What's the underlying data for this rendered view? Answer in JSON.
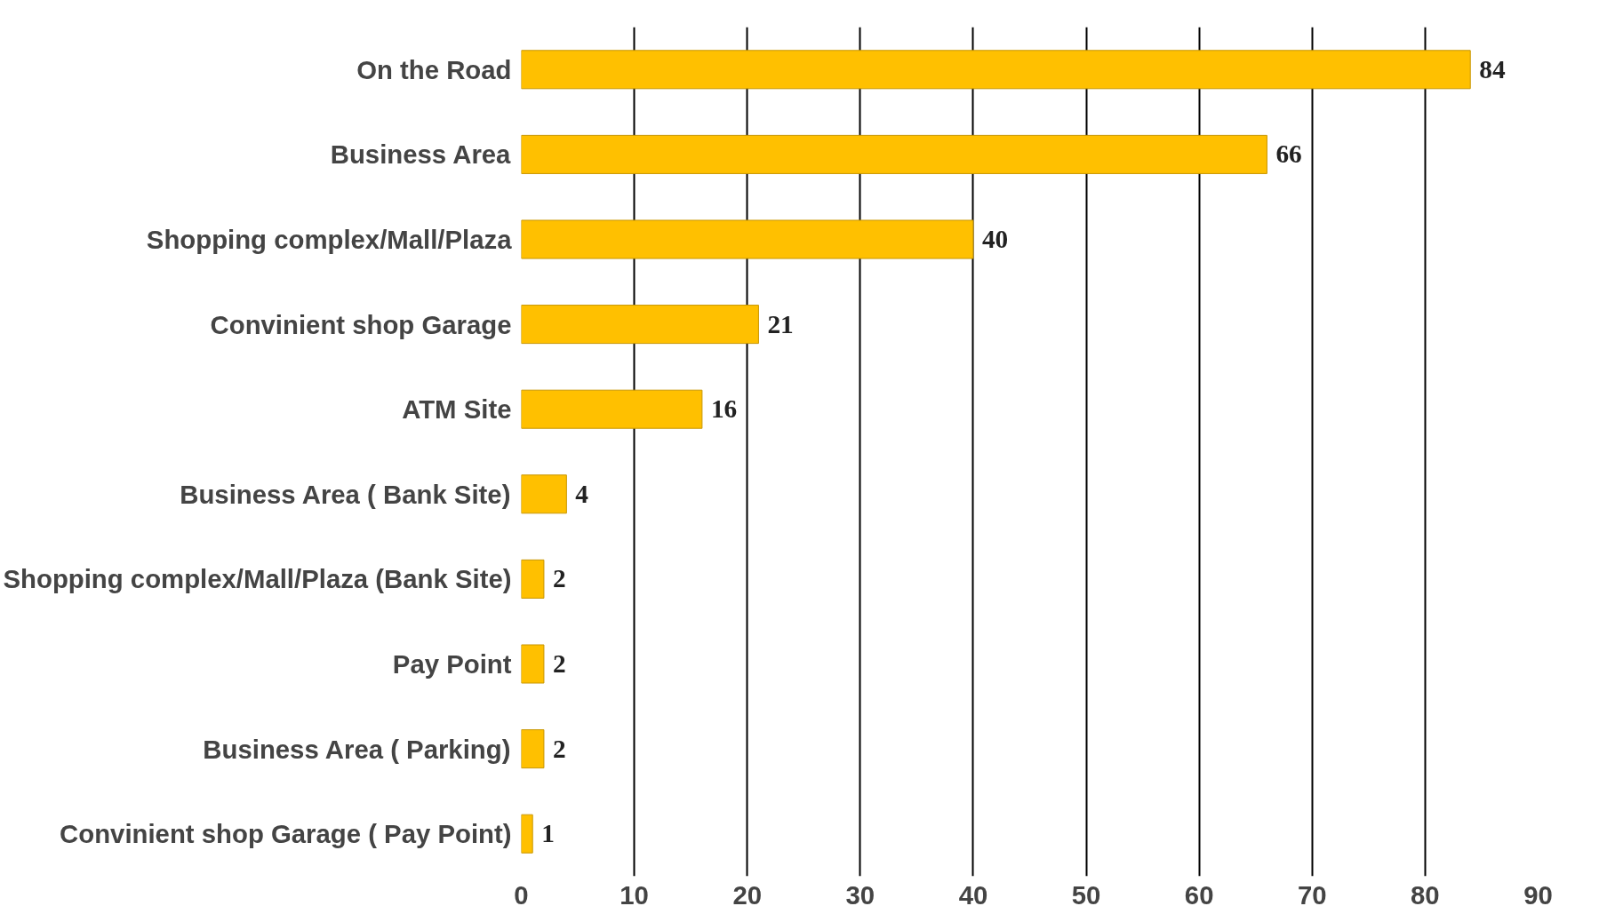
{
  "chart_data": {
    "type": "bar",
    "orientation": "horizontal",
    "categories": [
      "On the Road",
      "Business Area",
      "Shopping complex/Mall/Plaza",
      "Convinient shop Garage",
      "ATM Site",
      "Business Area ( Bank Site)",
      "Shopping complex/Mall/Plaza (Bank Site)",
      "Pay Point",
      "Business Area ( Parking)",
      "Convinient shop Garage ( Pay Point)"
    ],
    "values": [
      84,
      66,
      40,
      21,
      16,
      4,
      2,
      2,
      2,
      1
    ],
    "color": "#ffc000",
    "xlim": [
      0,
      90
    ],
    "xticks": [
      0,
      10,
      20,
      30,
      40,
      50,
      60,
      70,
      80,
      90
    ],
    "grid": "x",
    "data_labels": true
  }
}
